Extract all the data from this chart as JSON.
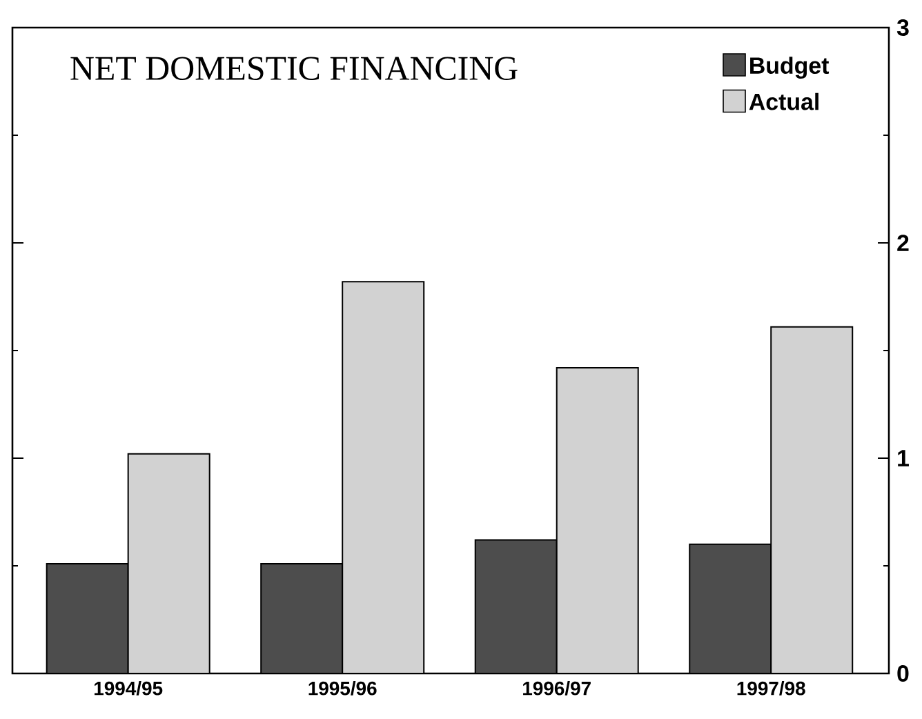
{
  "chart_data": {
    "type": "bar",
    "title": "NET DOMESTIC FINANCING",
    "categories": [
      "1994/95",
      "1995/96",
      "1996/97",
      "1997/98"
    ],
    "series": [
      {
        "name": "Budget",
        "color": "#4d4d4d",
        "values": [
          0.51,
          0.51,
          0.62,
          0.6
        ]
      },
      {
        "name": "Actual",
        "color": "#d2d2d2",
        "values": [
          1.02,
          1.82,
          1.42,
          1.61
        ]
      }
    ],
    "ylim": [
      0,
      3
    ],
    "yticks": [
      0,
      {
        "value": 0.5,
        "label": null
      },
      1,
      {
        "value": 1.5,
        "label": null
      },
      2,
      {
        "value": 2.5,
        "label": null
      },
      3
    ],
    "legend": "top right"
  }
}
